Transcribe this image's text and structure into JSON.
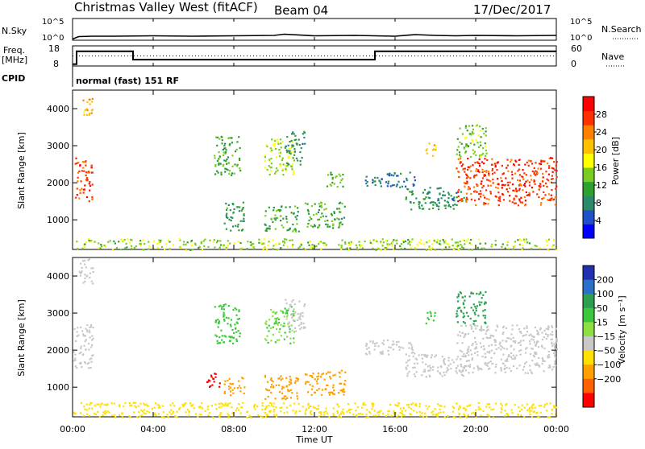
{
  "header": {
    "station": "Christmas Valley West (fitACF)",
    "beam": "Beam 04",
    "date": "17/Dec/2017"
  },
  "colors": {
    "line": "#000000",
    "bg": "#ffffff"
  },
  "top_panels": {
    "nsky": {
      "label": "N.Sky",
      "left_ticks": [
        "10^5",
        "10^0"
      ],
      "right_ticks": [
        "10^5",
        "10^0"
      ],
      "right_label": "N.Search"
    },
    "freq": {
      "label_line1": "Freq.",
      "label_line2": "[MHz]",
      "left_ticks": [
        "18",
        "8"
      ],
      "right_ticks": [
        "60",
        "0"
      ],
      "right_label": "Nave"
    },
    "cpid": {
      "label": "CPID",
      "text": "normal (fast) 151 RF"
    }
  },
  "chart_data": [
    {
      "type": "line",
      "name": "nsky-nsearch",
      "ylabel": "N.Sky",
      "y2label": "N.Search",
      "ylim": [
        0,
        5
      ],
      "x_unit": "hours UT",
      "xlim": [
        0,
        24
      ],
      "series": [
        {
          "style": "solid",
          "x": [
            0,
            0.3,
            1,
            2,
            4,
            6,
            8,
            10,
            10.5,
            12,
            14,
            16,
            17,
            18,
            19,
            20,
            22,
            24
          ],
          "y": [
            0.1,
            0.7,
            0.8,
            0.8,
            0.9,
            0.8,
            0.9,
            1.0,
            1.3,
            0.9,
            1.0,
            0.8,
            1.2,
            1.0,
            0.9,
            1.0,
            0.9,
            1.0
          ]
        }
      ]
    },
    {
      "type": "line",
      "name": "frequency-nave",
      "ylabel": "Freq. [MHz]",
      "y2label": "Nave",
      "ylim": [
        8,
        18
      ],
      "y2lim": [
        0,
        60
      ],
      "xlim": [
        0,
        24
      ],
      "series": [
        {
          "style": "solid",
          "x": [
            0,
            0.2,
            0.2,
            3,
            3,
            15,
            15,
            24
          ],
          "y": [
            8.5,
            8.5,
            15.5,
            15.5,
            11,
            11,
            15.5,
            15.5
          ]
        },
        {
          "style": "dotted",
          "x": [
            0,
            3,
            3,
            15,
            15,
            24
          ],
          "y": [
            13,
            13,
            13,
            13,
            13,
            13
          ]
        }
      ]
    },
    {
      "type": "heatmap",
      "name": "power",
      "ylabel": "Slant Range [km]",
      "ylim": [
        200,
        4500
      ],
      "yticks": [
        1000,
        2000,
        3000,
        4000
      ],
      "xlim": [
        0,
        24
      ],
      "colorbar": {
        "label": "Power [dB]",
        "ticks": [
          4,
          8,
          12,
          16,
          20,
          24,
          28
        ],
        "colors": [
          "#0000ff",
          "#1e50c8",
          "#2a8a6a",
          "#2ea02e",
          "#7acc20",
          "#ffff00",
          "#ffc000",
          "#ff8000",
          "#ff3000",
          "#ff0000"
        ],
        "range": [
          0,
          32
        ]
      },
      "regions": [
        {
          "x": [
            0.1,
            1.0
          ],
          "y": [
            1500,
            2700
          ],
          "value": 27
        },
        {
          "x": [
            0.3,
            1.0
          ],
          "y": [
            3800,
            4300
          ],
          "value": 22
        },
        {
          "x": [
            7.0,
            8.3
          ],
          "y": [
            2200,
            3300
          ],
          "value": 12
        },
        {
          "x": [
            7.5,
            8.5
          ],
          "y": [
            700,
            1500
          ],
          "value": 10
        },
        {
          "x": [
            9.5,
            11.0
          ],
          "y": [
            2200,
            3200
          ],
          "value": 16
        },
        {
          "x": [
            10.5,
            11.5
          ],
          "y": [
            2500,
            3400
          ],
          "value": 9
        },
        {
          "x": [
            9.5,
            11.2
          ],
          "y": [
            700,
            1400
          ],
          "value": 11
        },
        {
          "x": [
            11.5,
            13.5
          ],
          "y": [
            800,
            1500
          ],
          "value": 12
        },
        {
          "x": [
            12.5,
            13.5
          ],
          "y": [
            1900,
            2300
          ],
          "value": 13
        },
        {
          "x": [
            14.5,
            17.0
          ],
          "y": [
            1900,
            2300
          ],
          "value": 7
        },
        {
          "x": [
            16.5,
            19.5
          ],
          "y": [
            1300,
            1900
          ],
          "value": 9
        },
        {
          "x": [
            17.5,
            18.0
          ],
          "y": [
            2700,
            3100
          ],
          "value": 21
        },
        {
          "x": [
            19.0,
            24.0
          ],
          "y": [
            1400,
            2700
          ],
          "value": 27
        },
        {
          "x": [
            19.0,
            20.5
          ],
          "y": [
            2700,
            3600
          ],
          "value": 14
        },
        {
          "x": [
            0.0,
            24.0
          ],
          "y": [
            200,
            500
          ],
          "value": 15
        }
      ]
    },
    {
      "type": "heatmap",
      "name": "velocity",
      "ylabel": "Slant Range [km]",
      "ylim": [
        200,
        4500
      ],
      "yticks": [
        1000,
        2000,
        3000,
        4000
      ],
      "xlim": [
        0,
        24
      ],
      "colorbar": {
        "label": "Velocity [m s⁻¹]",
        "ticks": [
          "200",
          "100",
          "50",
          "15",
          "−15",
          "−50",
          "−100",
          "−200"
        ],
        "colors": [
          "#2030b0",
          "#2870c8",
          "#2aa050",
          "#3cc83c",
          "#8ee040",
          "#c8c8c8",
          "#ffe000",
          "#ffa000",
          "#ff6000",
          "#ff0000"
        ]
      },
      "regions": [
        {
          "x": [
            0.0,
            1.0
          ],
          "y": [
            1500,
            2700
          ],
          "value": 0
        },
        {
          "x": [
            0.3,
            1.0
          ],
          "y": [
            3800,
            4500
          ],
          "value": 0
        },
        {
          "x": [
            7.0,
            8.3
          ],
          "y": [
            2200,
            3300
          ],
          "value": 40
        },
        {
          "x": [
            6.5,
            7.3
          ],
          "y": [
            1000,
            1400
          ],
          "value": -200
        },
        {
          "x": [
            7.5,
            8.5
          ],
          "y": [
            800,
            1300
          ],
          "value": -80
        },
        {
          "x": [
            9.5,
            11.0
          ],
          "y": [
            2200,
            3200
          ],
          "value": 30
        },
        {
          "x": [
            10.5,
            11.5
          ],
          "y": [
            2500,
            3400
          ],
          "value": 0
        },
        {
          "x": [
            9.5,
            11.2
          ],
          "y": [
            700,
            1400
          ],
          "value": -60
        },
        {
          "x": [
            11.5,
            13.5
          ],
          "y": [
            800,
            1500
          ],
          "value": -80
        },
        {
          "x": [
            14.5,
            17.0
          ],
          "y": [
            1900,
            2300
          ],
          "value": 0
        },
        {
          "x": [
            16.5,
            19.5
          ],
          "y": [
            1300,
            1900
          ],
          "value": 0
        },
        {
          "x": [
            17.5,
            18.0
          ],
          "y": [
            2700,
            3100
          ],
          "value": 40
        },
        {
          "x": [
            19.0,
            24.0
          ],
          "y": [
            1400,
            2700
          ],
          "value": 0
        },
        {
          "x": [
            19.0,
            20.5
          ],
          "y": [
            2700,
            3600
          ],
          "value": 60
        },
        {
          "x": [
            0.0,
            24.0
          ],
          "y": [
            200,
            600
          ],
          "value": -30
        }
      ]
    }
  ],
  "x_axis": {
    "ticks": [
      "00:00",
      "04:00",
      "08:00",
      "12:00",
      "16:00",
      "20:00",
      "00:00"
    ],
    "label": "Time UT"
  }
}
